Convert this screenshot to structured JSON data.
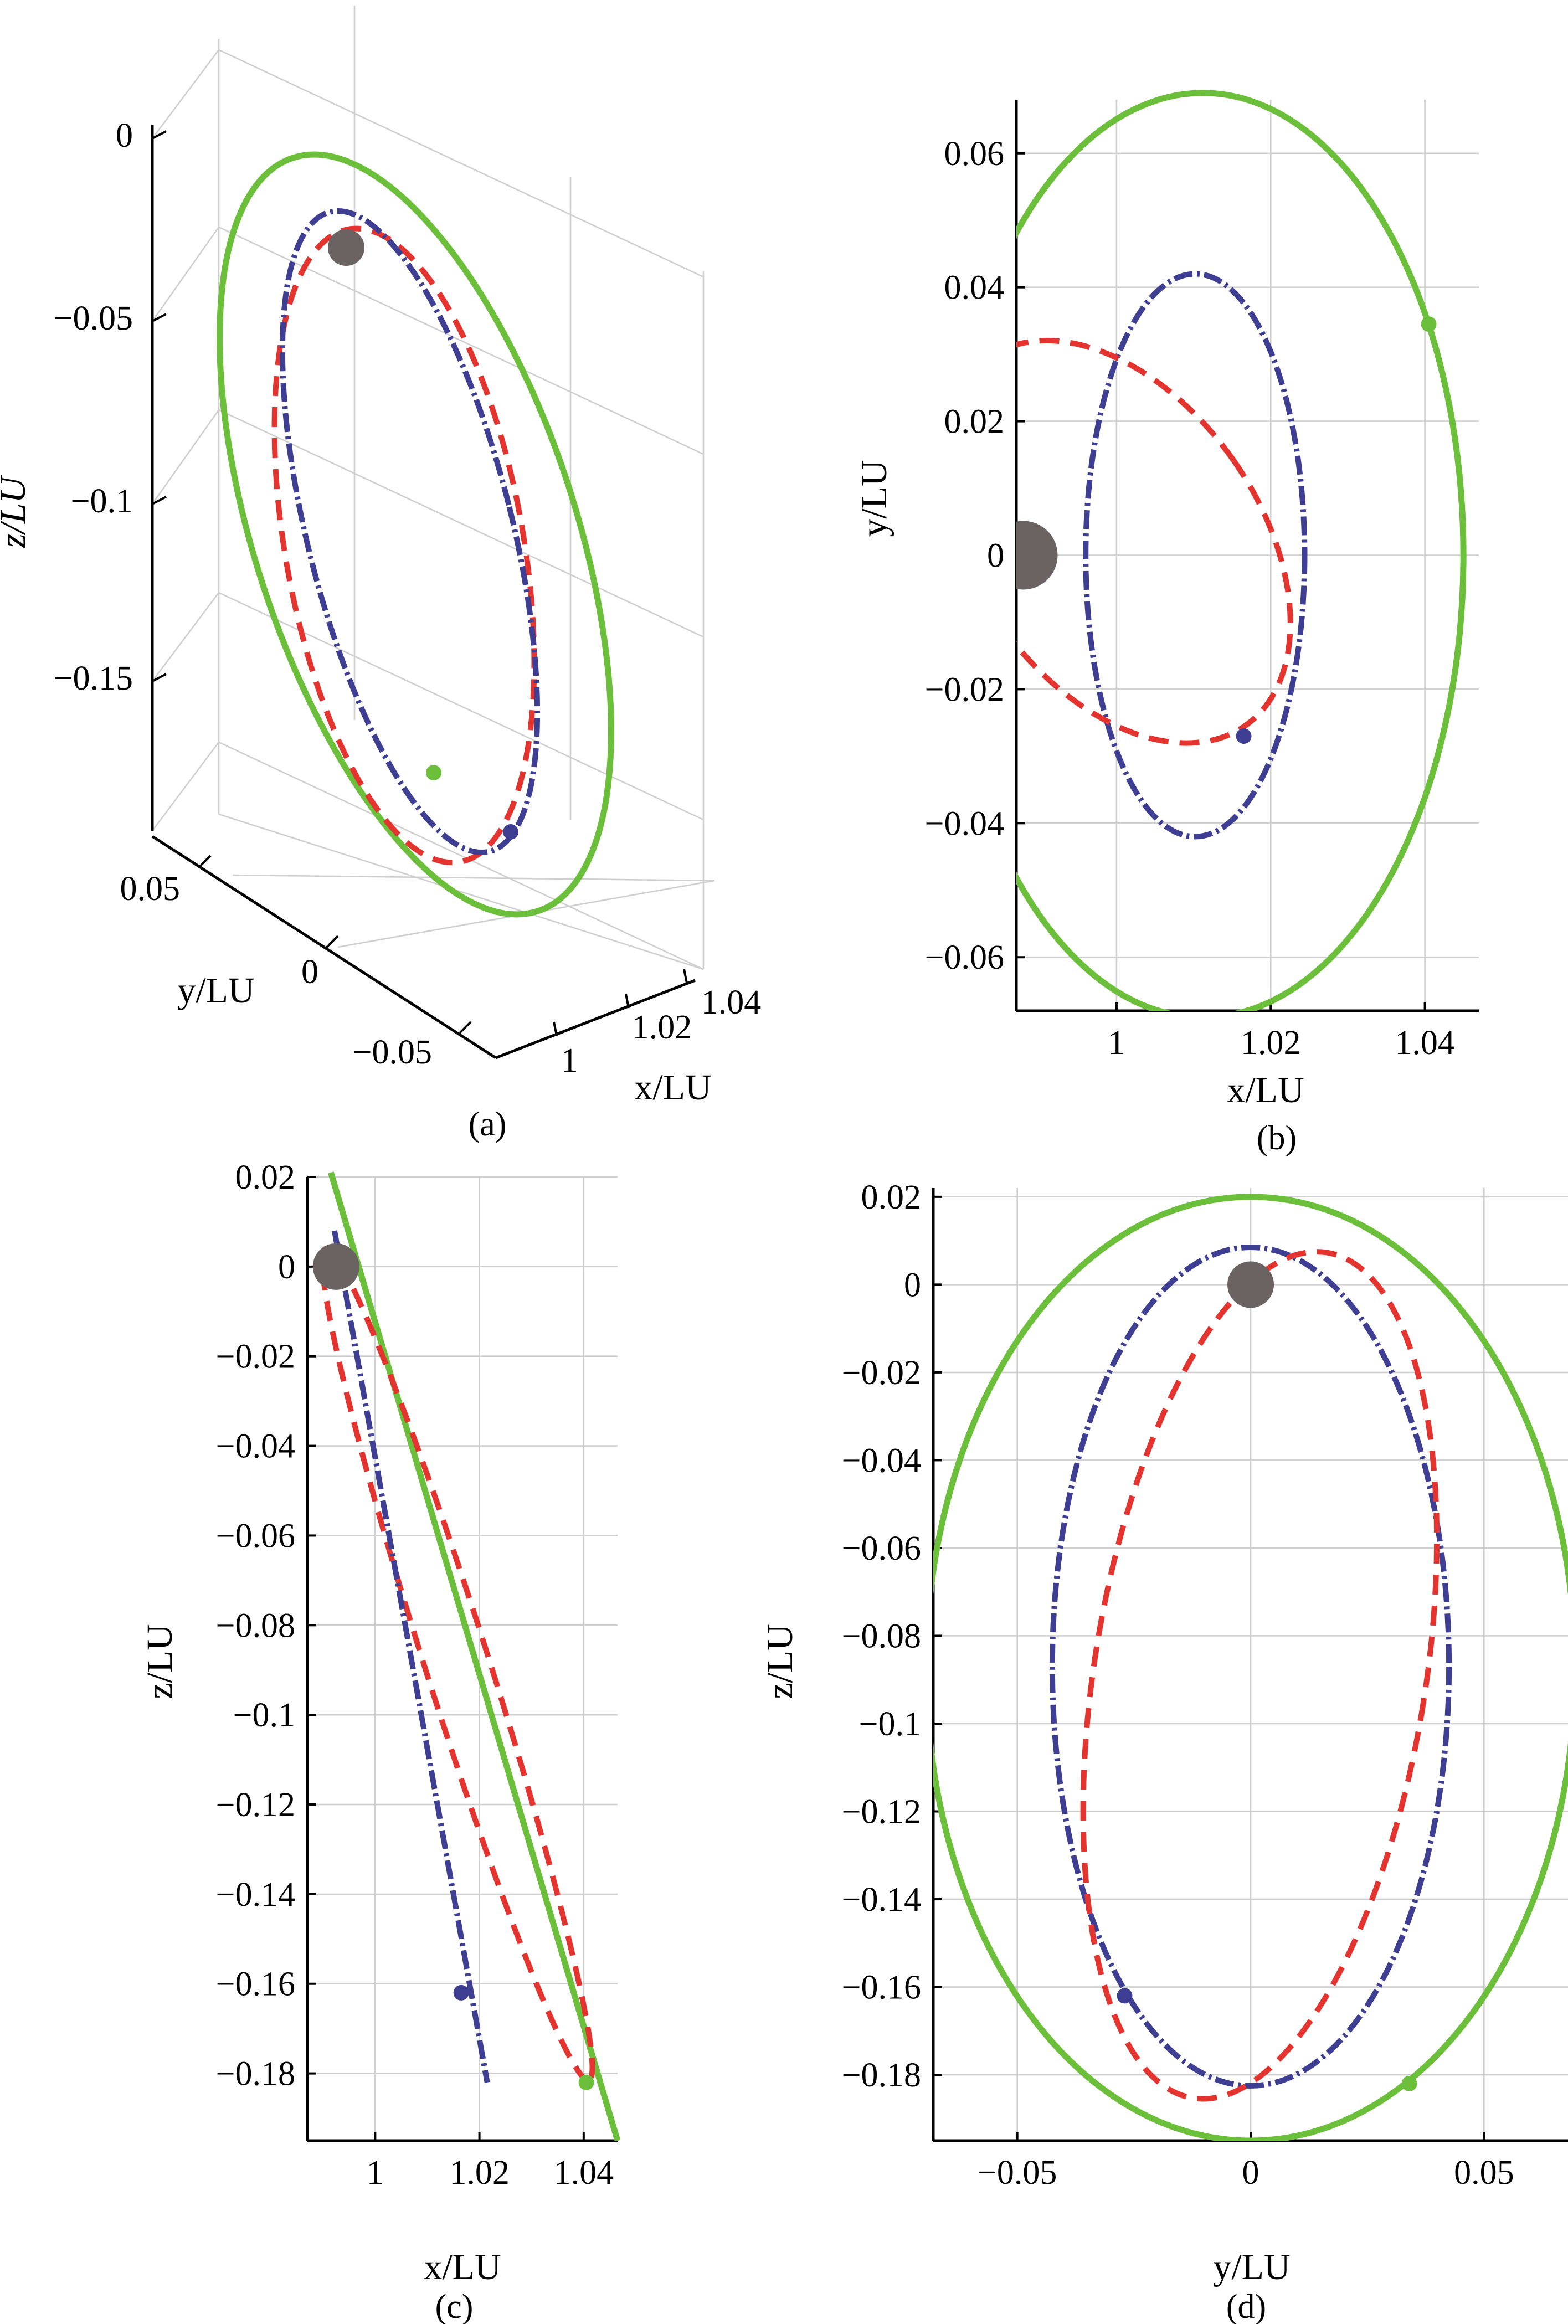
{
  "colors": {
    "green": "#6cbf3a",
    "blue": "#3e3f93",
    "red": "#e3342f",
    "moon": "#6b6262",
    "grid": "#cfcfcf"
  },
  "panel_a": {
    "caption": "(a)",
    "xlabel": "x/LU",
    "ylabel": "y/LU",
    "zlabel": "z/LU",
    "z_ticks": [
      "0",
      "−0.05",
      "−0.1",
      "−0.15"
    ],
    "y_ticks": [
      "0.05",
      "0",
      "−0.05"
    ],
    "x_ticks": [
      "1",
      "1.02",
      "1.04"
    ]
  },
  "chart_data": [
    {
      "type": "line",
      "panel": "b",
      "caption": "(b)",
      "xlabel": "x/LU",
      "ylabel": "y/LU",
      "xlim": [
        0.987,
        1.047
      ],
      "ylim": [
        -0.068,
        0.068
      ],
      "x_ticks": [
        1,
        1.02,
        1.04
      ],
      "x_tick_labels": [
        "1",
        "1.02",
        "1.04"
      ],
      "y_ticks": [
        -0.06,
        -0.04,
        -0.02,
        0,
        0.02,
        0.04,
        0.06
      ],
      "y_tick_labels": [
        "−0.06",
        "−0.04",
        "−0.02",
        "0",
        "0.02",
        "0.04",
        "0.06"
      ],
      "orbits": [
        {
          "color": "green",
          "style": "solid",
          "cx": 1.0112,
          "cy": 0.0,
          "rx": 0.0338,
          "ry": 0.069
        },
        {
          "color": "blue",
          "style": "dash-dot",
          "cx": 1.0102,
          "cy": 0.0,
          "rx": 0.0142,
          "ry": 0.042
        },
        {
          "color": "red",
          "style": "dashed",
          "cx": 1.0,
          "cy": 0.002,
          "rx": 0.0185,
          "ry": 0.0335,
          "rotation": -35
        }
      ],
      "markers": [
        {
          "color": "green",
          "x": 1.0405,
          "y": 0.0345
        },
        {
          "color": "blue",
          "x": 1.0165,
          "y": -0.027
        }
      ],
      "moon": {
        "x": 0.9879,
        "y": 0.0
      }
    },
    {
      "type": "line",
      "panel": "c",
      "caption": "(c)",
      "xlabel": "x/LU",
      "ylabel": "z/LU",
      "xlim": [
        0.987,
        1.0465
      ],
      "ylim": [
        -0.195,
        0.02
      ],
      "x_ticks": [
        1,
        1.02,
        1.04
      ],
      "x_tick_labels": [
        "1",
        "1.02",
        "1.04"
      ],
      "y_ticks": [
        0.02,
        0,
        -0.02,
        -0.04,
        -0.06,
        -0.08,
        -0.1,
        -0.12,
        -0.14,
        -0.16,
        -0.18
      ],
      "y_tick_labels": [
        "0.02",
        "0",
        "−0.02",
        "−0.04",
        "−0.06",
        "−0.08",
        "−0.1",
        "−0.12",
        "−0.14",
        "−0.16",
        "−0.18"
      ],
      "green_line": {
        "x": [
          0.9915,
          1.0465
        ],
        "z": [
          0.021,
          -0.195
        ]
      },
      "blue_line": {
        "x": [
          0.9922,
          1.0215
        ],
        "z": [
          0.008,
          -0.182
        ]
      },
      "red_loop": {
        "x": [
          0.9905,
          1.041
        ],
        "z": [
          0.004,
          -0.1815
        ],
        "half_width": 0.0061
      },
      "markers": [
        {
          "color": "green",
          "x": 1.0405,
          "z": -0.182
        },
        {
          "color": "blue",
          "x": 1.0165,
          "z": -0.162
        }
      ],
      "moon": {
        "x": 0.9925,
        "z": 0.0
      }
    },
    {
      "type": "line",
      "panel": "d",
      "caption": "(d)",
      "xlabel": "y/LU",
      "ylabel": "z/LU",
      "xlim": [
        -0.068,
        0.068
      ],
      "ylim": [
        -0.195,
        0.022
      ],
      "x_ticks": [
        -0.05,
        0,
        0.05
      ],
      "x_tick_labels": [
        "−0.05",
        "0",
        "0.05"
      ],
      "y_ticks": [
        0.02,
        0,
        -0.02,
        -0.04,
        -0.06,
        -0.08,
        -0.1,
        -0.12,
        -0.14,
        -0.16,
        -0.18
      ],
      "y_tick_labels": [
        "0.02",
        "0",
        "−0.02",
        "−0.04",
        "−0.06",
        "−0.08",
        "−0.1",
        "−0.12",
        "−0.14",
        "−0.16",
        "−0.18"
      ],
      "orbits": [
        {
          "color": "green",
          "style": "solid",
          "cx": 0.0,
          "cy": -0.0875,
          "rx": 0.0695,
          "ry": 0.1075
        },
        {
          "color": "blue",
          "style": "dash-dot",
          "cx": 0.0,
          "cy": -0.087,
          "rx": 0.0425,
          "ry": 0.0955
        },
        {
          "color": "red",
          "style": "dashed",
          "cx": 0.002,
          "cy": -0.089,
          "rx": 0.0355,
          "ry": 0.0975,
          "rotation": 9
        }
      ],
      "markers": [
        {
          "color": "green",
          "x": 0.034,
          "z": -0.182
        },
        {
          "color": "blue",
          "x": -0.027,
          "z": -0.162
        }
      ],
      "moon": {
        "x": 0.0,
        "z": 0.0
      }
    }
  ]
}
